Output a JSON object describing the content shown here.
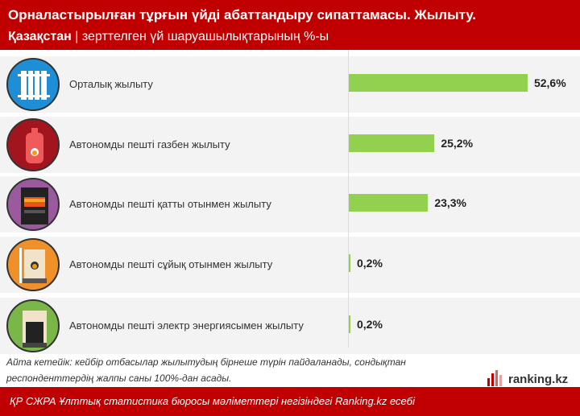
{
  "header": {
    "title": "Орналастырылған тұрғын үйді абаттандыру сипаттамасы. Жылыту.",
    "region": "Қазақстан",
    "separator": "|",
    "subtitle": "зерттелген үй шаруашылықтарының %-ы"
  },
  "chart_data": {
    "type": "bar",
    "orientation": "horizontal",
    "unit": "%",
    "categories": [
      "Орталық жылыту",
      "Автономды пешті газбен жылыту",
      "Автономды пешті қатты отынмен жылыту",
      "Автономды пешті сұйық отынмен жылыту",
      "Автономды пешті электр энергиясымен жылыту"
    ],
    "values": [
      52.6,
      25.2,
      23.3,
      0.2,
      0.2
    ],
    "labels": [
      "52,6%",
      "25,2%",
      "23,3%",
      "0,2%",
      "0,2%"
    ],
    "icons": [
      "radiator-icon",
      "gas-cylinder-icon",
      "stove-icon",
      "boiler-icon",
      "electric-boiler-icon"
    ],
    "icon_colors": [
      "#1e8fd6",
      "#a3151e",
      "#9b5a9e",
      "#f0902a",
      "#7ab648"
    ],
    "bar_color": "#92d050"
  },
  "note": "Айта кетейік: кейбір отбасылар жылытудың бірнеше түрін пайдаланады, сондықтан респонденттердің жалпы саны 100%-дан асады.",
  "logo": "ranking.kz",
  "footer": "ҚР СЖРА Ұлттық статистика бюросы мәліметтері негізіндегі Ranking.kz есебі"
}
